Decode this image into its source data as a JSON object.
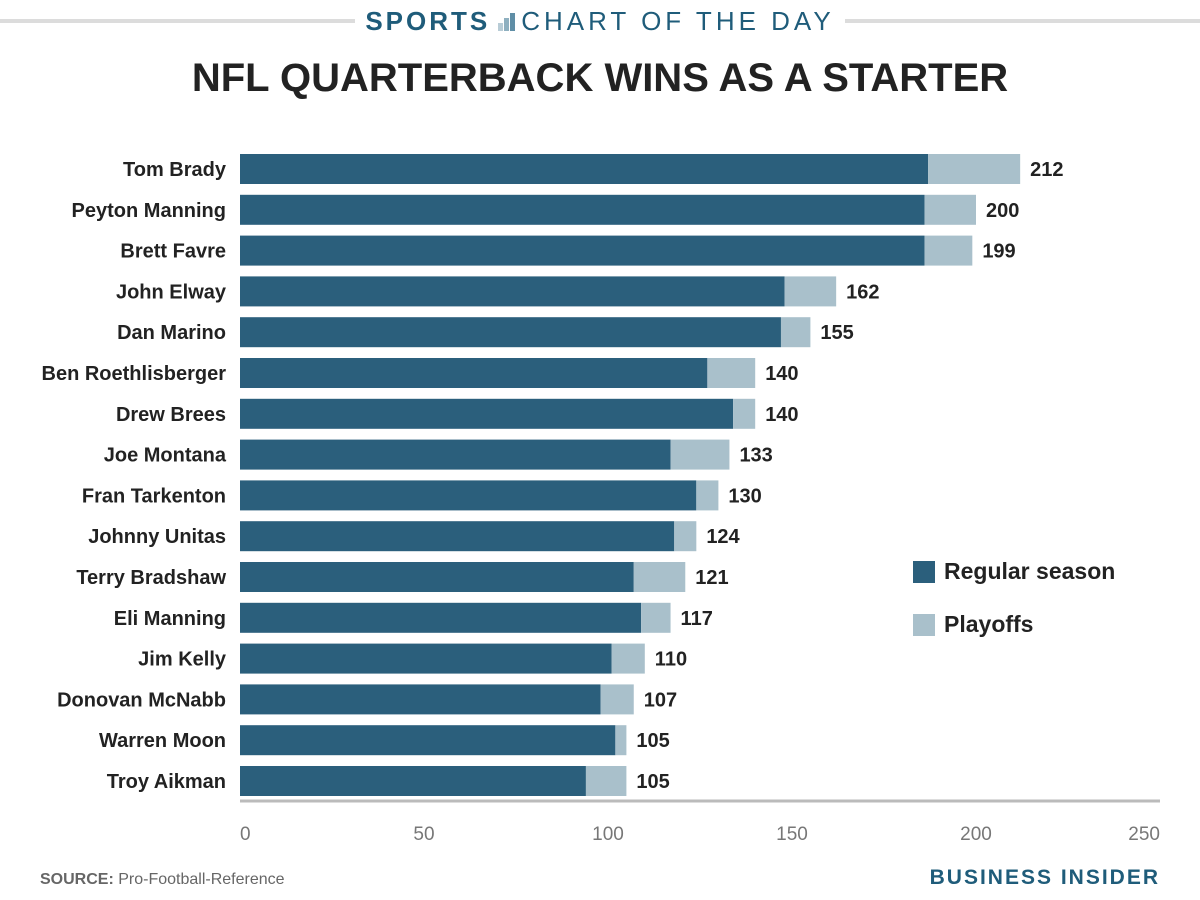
{
  "header": {
    "sports_label": "SPORTS",
    "chart_of_day_label": "CHART OF THE DAY"
  },
  "footer": {
    "source_label": "SOURCE:",
    "source_value": "Pro-Football-Reference",
    "brand": "BUSINESS INSIDER"
  },
  "colors": {
    "regular": "#2b5f7c",
    "playoffs": "#a9c0cb",
    "brand": "#1f5c7a"
  },
  "chart_data": {
    "type": "bar",
    "orientation": "horizontal",
    "stacked": true,
    "title": "NFL QUARTERBACK WINS AS A STARTER",
    "xlabel": "",
    "ylabel": "",
    "xlim": [
      0,
      250
    ],
    "xticks": [
      0,
      50,
      100,
      150,
      200,
      250
    ],
    "grid": false,
    "legend_position": "right",
    "categories": [
      "Tom Brady",
      "Peyton Manning",
      "Brett Favre",
      "John Elway",
      "Dan Marino",
      "Ben Roethlisberger",
      "Drew Brees",
      "Joe Montana",
      "Fran Tarkenton",
      "Johnny Unitas",
      "Terry Bradshaw",
      "Eli Manning",
      "Jim Kelly",
      "Donovan McNabb",
      "Warren Moon",
      "Troy Aikman"
    ],
    "series": [
      {
        "name": "Regular season",
        "values": [
          187,
          186,
          186,
          148,
          147,
          127,
          134,
          117,
          124,
          118,
          107,
          109,
          101,
          98,
          102,
          94
        ]
      },
      {
        "name": "Playoffs",
        "values": [
          25,
          14,
          13,
          14,
          8,
          13,
          6,
          16,
          6,
          6,
          14,
          8,
          9,
          9,
          3,
          11
        ]
      }
    ],
    "totals": [
      212,
      200,
      199,
      162,
      155,
      140,
      140,
      133,
      130,
      124,
      121,
      117,
      110,
      107,
      105,
      105
    ]
  }
}
